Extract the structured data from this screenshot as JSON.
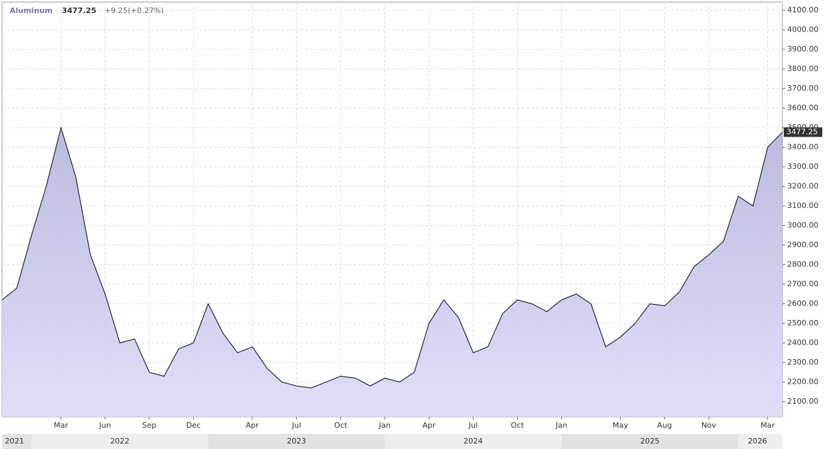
{
  "chart_data": {
    "type": "area-line",
    "title": "Aluminum",
    "price_text": "3477.25",
    "change_text": "+9.25(+0.27%)",
    "color": "#222233",
    "fill": "#c8c8f0",
    "x": [
      "2021-11",
      "2021-12",
      "2022-01",
      "2022-02",
      "2022-03",
      "2022-04",
      "2022-05",
      "2022-06",
      "2022-07",
      "2022-08",
      "2022-09",
      "2022-10",
      "2022-11",
      "2022-12",
      "2023-01",
      "2023-02",
      "2023-03",
      "2023-04",
      "2023-05",
      "2023-06",
      "2023-07",
      "2023-08",
      "2023-09",
      "2023-10",
      "2023-11",
      "2023-12",
      "2024-01",
      "2024-02",
      "2024-03",
      "2024-04",
      "2024-05",
      "2024-06",
      "2024-07",
      "2024-08",
      "2024-09",
      "2024-10",
      "2024-11",
      "2024-12",
      "2025-01",
      "2025-02",
      "2025-03",
      "2025-04",
      "2025-05",
      "2025-06",
      "2025-07",
      "2025-08",
      "2025-09",
      "2025-10",
      "2025-11",
      "2025-12",
      "2026-01",
      "2026-02",
      "2026-03",
      "2026-04"
    ],
    "values": [
      2620,
      2680,
      2950,
      3200,
      3500,
      3250,
      2850,
      2650,
      2400,
      2420,
      2250,
      2230,
      2370,
      2400,
      2600,
      2450,
      2350,
      2380,
      2270,
      2200,
      2180,
      2170,
      2200,
      2230,
      2220,
      2180,
      2220,
      2200,
      2250,
      2500,
      2620,
      2530,
      2350,
      2380,
      2550,
      2620,
      2600,
      2560,
      2620,
      2650,
      2600,
      2380,
      2430,
      2500,
      2600,
      2590,
      2660,
      2790,
      2850,
      2920,
      3150,
      3100,
      3400,
      3477.25
    ],
    "xlim": [
      "2021-11",
      "2026-04"
    ],
    "xticks": [
      {
        "value": "2022-03",
        "label": "Mar"
      },
      {
        "value": "2022-06",
        "label": "Jun"
      },
      {
        "value": "2022-09",
        "label": "Sep"
      },
      {
        "value": "2022-12",
        "label": "Dec"
      },
      {
        "value": "2023-04",
        "label": "Apr"
      },
      {
        "value": "2023-07",
        "label": "Jul"
      },
      {
        "value": "2023-10",
        "label": "Oct"
      },
      {
        "value": "2024-01",
        "label": "Jan"
      },
      {
        "value": "2024-04",
        "label": "Apr"
      },
      {
        "value": "2024-07",
        "label": "Jul"
      },
      {
        "value": "2024-10",
        "label": "Oct"
      },
      {
        "value": "2025-01",
        "label": "Jan"
      },
      {
        "value": "2025-05",
        "label": "May"
      },
      {
        "value": "2025-08",
        "label": "Aug"
      },
      {
        "value": "2025-11",
        "label": "Nov"
      },
      {
        "value": "2026-03",
        "label": "Mar"
      }
    ],
    "years": [
      "2021",
      "2022",
      "2023",
      "2024",
      "2025",
      "2026"
    ],
    "ylim": [
      2023,
      4142
    ],
    "yticks": [
      {
        "value": 2100,
        "label": "2100.00"
      },
      {
        "value": 2200,
        "label": "2200.00"
      },
      {
        "value": 2300,
        "label": "2300.00"
      },
      {
        "value": 2400,
        "label": "2400.00"
      },
      {
        "value": 2500,
        "label": "2500.00"
      },
      {
        "value": 2600,
        "label": "2600.00"
      },
      {
        "value": 2700,
        "label": "2700.00"
      },
      {
        "value": 2800,
        "label": "2800.00"
      },
      {
        "value": 2900,
        "label": "2900.00"
      },
      {
        "value": 3000,
        "label": "3000.00"
      },
      {
        "value": 3100,
        "label": "3100.00"
      },
      {
        "value": 3200,
        "label": "3200.00"
      },
      {
        "value": 3300,
        "label": "3300.00"
      },
      {
        "value": 3400,
        "label": "3400.00"
      },
      {
        "value": 3500,
        "label": "3500.00"
      },
      {
        "value": 3600,
        "label": "3600.00"
      },
      {
        "value": 3700,
        "label": "3700.00"
      },
      {
        "value": 3800,
        "label": "3800.00"
      },
      {
        "value": 3900,
        "label": "3900.00"
      },
      {
        "value": 4000,
        "label": "4000.00"
      },
      {
        "value": 4100,
        "label": "4100.00"
      }
    ],
    "grid": true
  }
}
